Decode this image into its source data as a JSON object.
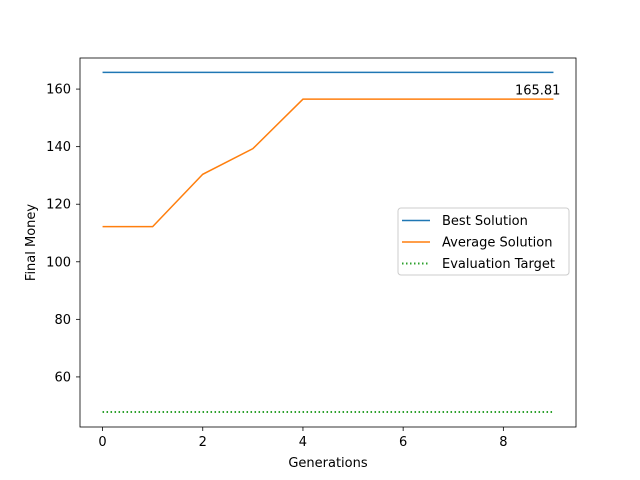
{
  "chart_data": {
    "type": "line",
    "xlabel": "Generations",
    "ylabel": "Final Money",
    "xlim": [
      -0.45,
      9.45
    ],
    "ylim": [
      42.6,
      170.8
    ],
    "xticks": [
      0,
      2,
      4,
      6,
      8
    ],
    "yticks": [
      60,
      80,
      100,
      120,
      140,
      160
    ],
    "grid": false,
    "legend_position": "center-right",
    "x": [
      0,
      1,
      2,
      3,
      4,
      5,
      6,
      7,
      8,
      9
    ],
    "series": [
      {
        "name": "Best Solution",
        "color": "#1f77b4",
        "style": "solid",
        "values": [
          165.81,
          165.81,
          165.81,
          165.81,
          165.81,
          165.81,
          165.81,
          165.81,
          165.81,
          165.81
        ]
      },
      {
        "name": "Average Solution",
        "color": "#ff7f0e",
        "style": "solid",
        "values": [
          112.2,
          112.2,
          130.4,
          139.3,
          156.5,
          156.5,
          156.5,
          156.5,
          156.5,
          156.5
        ]
      },
      {
        "name": "Evaluation Target",
        "color": "#2ca02c",
        "style": "dotted",
        "values": [
          47.8,
          47.8,
          47.8,
          47.8,
          47.8,
          47.8,
          47.8,
          47.8,
          47.8,
          47.8
        ]
      }
    ],
    "annotations": [
      {
        "text": "165.81",
        "x": 9,
        "y": 165.81
      }
    ]
  }
}
